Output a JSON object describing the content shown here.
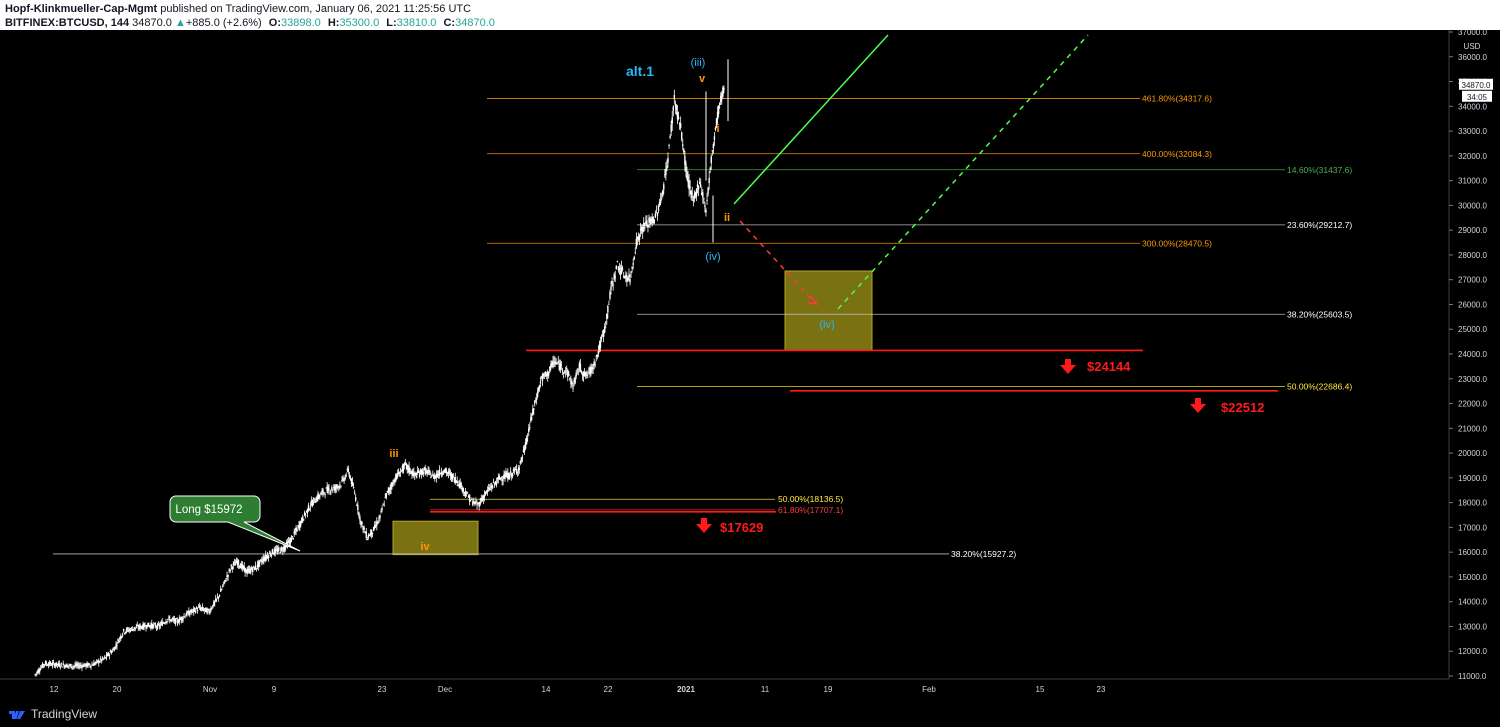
{
  "header": {
    "author": "Hopf-Klinkmueller-Cap-Mgmt",
    "published": "published on TradingView.com, January 06, 2021 11:25:56 UTC",
    "symbol": "BITFINEX:BTCUSD, 144",
    "last": "34870.0",
    "change": "+885.0 (+2.6%)",
    "o_label": "O:",
    "o": "33898.0",
    "h_label": "H:",
    "h": "35300.0",
    "l_label": "L:",
    "l": "33810.0",
    "c_label": "C:",
    "c": "34870.0"
  },
  "footer": {
    "brand": "TradingView"
  },
  "colors": {
    "background": "#000000",
    "candle": "#ffffff",
    "fib_orange": "#ff9800",
    "support_red": "#ff0000",
    "green": "#4caf50",
    "yellow": "#ffeb3b",
    "box": "#8f8516",
    "wave_blue": "#29b6f6",
    "wave_orange": "#ff9800"
  },
  "chart_data": {
    "type": "candlestick",
    "y_axis_unit": "USD",
    "ylim": [
      11000,
      37000
    ],
    "yticks": [
      11000,
      12000,
      13000,
      14000,
      15000,
      16000,
      17000,
      18000,
      19000,
      20000,
      21000,
      22000,
      23000,
      24000,
      25000,
      26000,
      27000,
      28000,
      29000,
      30000,
      31000,
      32000,
      33000,
      34000,
      35000,
      36000,
      37000
    ],
    "x_ticks": [
      "12",
      "20",
      "Nov",
      "9",
      "23",
      "Dec",
      "14",
      "22",
      "2021",
      "11",
      "19",
      "Feb",
      "15",
      "23"
    ],
    "price_marker": "34870.0",
    "countdown": "34:05",
    "price_path": [
      [
        0,
        11050
      ],
      [
        3,
        11500
      ],
      [
        8,
        11450
      ],
      [
        12,
        11400
      ],
      [
        18,
        11450
      ],
      [
        22,
        11700
      ],
      [
        25,
        12100
      ],
      [
        28,
        12800
      ],
      [
        32,
        12950
      ],
      [
        36,
        13050
      ],
      [
        39,
        13000
      ],
      [
        42,
        13300
      ],
      [
        45,
        13200
      ],
      [
        48,
        13500
      ],
      [
        52,
        13750
      ],
      [
        55,
        13600
      ],
      [
        58,
        14200
      ],
      [
        60,
        14800
      ],
      [
        62,
        15400
      ],
      [
        64,
        15600
      ],
      [
        67,
        15200
      ],
      [
        70,
        15400
      ],
      [
        72,
        15700
      ],
      [
        75,
        16000
      ],
      [
        78,
        16100
      ],
      [
        81,
        16500
      ],
      [
        84,
        17200
      ],
      [
        87,
        17900
      ],
      [
        90,
        18300
      ],
      [
        92,
        18500
      ],
      [
        95,
        18600
      ],
      [
        97,
        18800
      ],
      [
        99,
        19300
      ],
      [
        101,
        18400
      ],
      [
        103,
        17200
      ],
      [
        105,
        16600
      ],
      [
        107,
        16900
      ],
      [
        109,
        17400
      ],
      [
        111,
        18300
      ],
      [
        114,
        19000
      ],
      [
        117,
        19500
      ],
      [
        120,
        19100
      ],
      [
        123,
        19300
      ],
      [
        126,
        19050
      ],
      [
        129,
        19300
      ],
      [
        131,
        19150
      ],
      [
        134,
        18800
      ],
      [
        136,
        18400
      ],
      [
        138,
        18050
      ],
      [
        140,
        17900
      ],
      [
        142,
        18300
      ],
      [
        144,
        18600
      ],
      [
        147,
        19000
      ],
      [
        150,
        19100
      ],
      [
        153,
        19400
      ],
      [
        155,
        20300
      ],
      [
        157,
        21500
      ],
      [
        160,
        23000
      ],
      [
        162,
        23200
      ],
      [
        164,
        23700
      ],
      [
        166,
        23500
      ],
      [
        168,
        23300
      ],
      [
        170,
        22700
      ],
      [
        172,
        23500
      ],
      [
        174,
        23100
      ],
      [
        176,
        23400
      ],
      [
        178,
        24100
      ],
      [
        180,
        25000
      ],
      [
        182,
        26600
      ],
      [
        184,
        27600
      ],
      [
        186,
        27200
      ],
      [
        188,
        27000
      ],
      [
        190,
        28500
      ],
      [
        192,
        29100
      ],
      [
        194,
        29300
      ],
      [
        196,
        29500
      ],
      [
        198,
        30300
      ],
      [
        200,
        31900
      ],
      [
        202,
        34300
      ],
      [
        204,
        33100
      ],
      [
        206,
        31200
      ],
      [
        208,
        30100
      ],
      [
        210,
        31000
      ],
      [
        212,
        29800
      ],
      [
        214,
        32200
      ],
      [
        216,
        33900
      ],
      [
        218,
        34870
      ]
    ],
    "fib_levels": [
      {
        "label": "461.80%(34317.6)",
        "value": 34317.6,
        "color": "#ff9800"
      },
      {
        "label": "400.00%(32084.3)",
        "value": 32084.3,
        "color": "#ff9800"
      },
      {
        "label": "14.60%(31437.6)",
        "value": 31437.6,
        "color": "#4caf50"
      },
      {
        "label": "23.60%(29212.7)",
        "value": 29212.7,
        "color": "#ffffff"
      },
      {
        "label": "300.00%(28470.5)",
        "value": 28470.5,
        "color": "#ff9800"
      },
      {
        "label": "38.20%(25603.5)",
        "value": 25603.5,
        "color": "#ffffff"
      },
      {
        "label": "50.00%(22686.4)",
        "value": 22686.4,
        "color": "#ffeb3b"
      },
      {
        "label": "50.00%(18136.5)",
        "value": 18136.5,
        "color": "#ffeb3b"
      },
      {
        "label": "61.80%(17707.1)",
        "value": 17707.1,
        "color": "#ff3b3b"
      },
      {
        "label": "38.20%(15927.2)",
        "value": 15927.2,
        "color": "#ffffff"
      }
    ],
    "support_levels": [
      {
        "label": "$24144",
        "value": 24144
      },
      {
        "label": "$22512",
        "value": 22512
      },
      {
        "label": "$17629",
        "value": 17629
      }
    ],
    "wave_labels": {
      "alt": "alt.1",
      "iii_major": "(iii)",
      "v_minor": "v",
      "i_minor": "i",
      "ii_minor": "ii",
      "iv_major": "(iv)",
      "iv_projected": "(iv)",
      "iii_orange": "iii",
      "iv_orange": "iv"
    },
    "callout": "Long $15972"
  }
}
